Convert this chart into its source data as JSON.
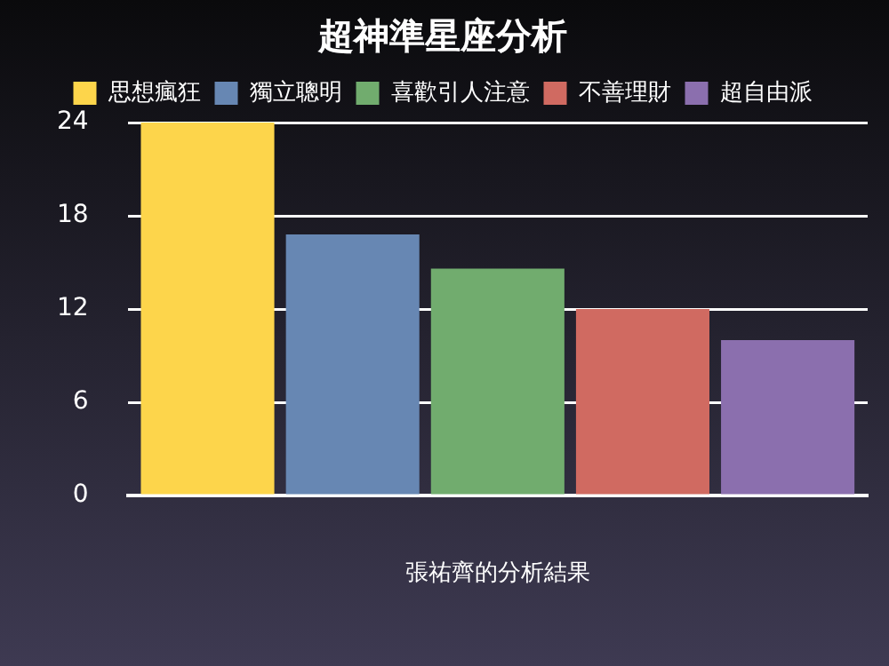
{
  "chart_data": {
    "type": "bar",
    "title": "超神準星座分析",
    "xlabel": "張祐齊的分析結果",
    "categories": [
      null
    ],
    "series": [
      {
        "name": "思想瘋狂",
        "color": "#fdd54b",
        "values": [
          24
        ]
      },
      {
        "name": "獨立聰明",
        "color": "#6787b3",
        "values": [
          16.8
        ]
      },
      {
        "name": "喜歡引人注意",
        "color": "#71ac6e",
        "values": [
          14.6
        ]
      },
      {
        "name": "不善理財",
        "color": "#d06a61",
        "values": [
          12
        ]
      },
      {
        "name": "超自由派",
        "color": "#8b6fae",
        "values": [
          10
        ]
      }
    ],
    "ylim": [
      0,
      24
    ],
    "yticks": [
      0,
      6,
      12,
      18,
      24
    ],
    "grid": "y",
    "legend": "top"
  }
}
